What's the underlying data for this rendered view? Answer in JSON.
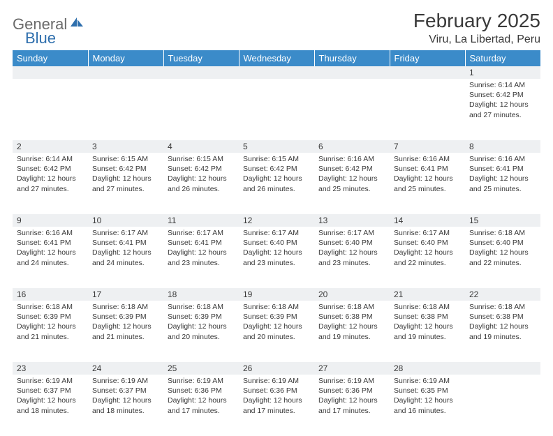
{
  "logo": {
    "part1": "General",
    "part2": "Blue"
  },
  "title": "February 2025",
  "location": "Viru, La Libertad, Peru",
  "colors": {
    "header_bg": "#3b8bc9",
    "header_text": "#ffffff",
    "daynum_bg": "#eef0f2",
    "text": "#3a3a3a",
    "logo_gray": "#6b6b6b",
    "logo_blue": "#2f6fad"
  },
  "day_headers": [
    "Sunday",
    "Monday",
    "Tuesday",
    "Wednesday",
    "Thursday",
    "Friday",
    "Saturday"
  ],
  "weeks": [
    [
      null,
      null,
      null,
      null,
      null,
      null,
      {
        "n": "1",
        "sr": "Sunrise: 6:14 AM",
        "ss": "Sunset: 6:42 PM",
        "dl1": "Daylight: 12 hours",
        "dl2": "and 27 minutes."
      }
    ],
    [
      {
        "n": "2",
        "sr": "Sunrise: 6:14 AM",
        "ss": "Sunset: 6:42 PM",
        "dl1": "Daylight: 12 hours",
        "dl2": "and 27 minutes."
      },
      {
        "n": "3",
        "sr": "Sunrise: 6:15 AM",
        "ss": "Sunset: 6:42 PM",
        "dl1": "Daylight: 12 hours",
        "dl2": "and 27 minutes."
      },
      {
        "n": "4",
        "sr": "Sunrise: 6:15 AM",
        "ss": "Sunset: 6:42 PM",
        "dl1": "Daylight: 12 hours",
        "dl2": "and 26 minutes."
      },
      {
        "n": "5",
        "sr": "Sunrise: 6:15 AM",
        "ss": "Sunset: 6:42 PM",
        "dl1": "Daylight: 12 hours",
        "dl2": "and 26 minutes."
      },
      {
        "n": "6",
        "sr": "Sunrise: 6:16 AM",
        "ss": "Sunset: 6:42 PM",
        "dl1": "Daylight: 12 hours",
        "dl2": "and 25 minutes."
      },
      {
        "n": "7",
        "sr": "Sunrise: 6:16 AM",
        "ss": "Sunset: 6:41 PM",
        "dl1": "Daylight: 12 hours",
        "dl2": "and 25 minutes."
      },
      {
        "n": "8",
        "sr": "Sunrise: 6:16 AM",
        "ss": "Sunset: 6:41 PM",
        "dl1": "Daylight: 12 hours",
        "dl2": "and 25 minutes."
      }
    ],
    [
      {
        "n": "9",
        "sr": "Sunrise: 6:16 AM",
        "ss": "Sunset: 6:41 PM",
        "dl1": "Daylight: 12 hours",
        "dl2": "and 24 minutes."
      },
      {
        "n": "10",
        "sr": "Sunrise: 6:17 AM",
        "ss": "Sunset: 6:41 PM",
        "dl1": "Daylight: 12 hours",
        "dl2": "and 24 minutes."
      },
      {
        "n": "11",
        "sr": "Sunrise: 6:17 AM",
        "ss": "Sunset: 6:41 PM",
        "dl1": "Daylight: 12 hours",
        "dl2": "and 23 minutes."
      },
      {
        "n": "12",
        "sr": "Sunrise: 6:17 AM",
        "ss": "Sunset: 6:40 PM",
        "dl1": "Daylight: 12 hours",
        "dl2": "and 23 minutes."
      },
      {
        "n": "13",
        "sr": "Sunrise: 6:17 AM",
        "ss": "Sunset: 6:40 PM",
        "dl1": "Daylight: 12 hours",
        "dl2": "and 23 minutes."
      },
      {
        "n": "14",
        "sr": "Sunrise: 6:17 AM",
        "ss": "Sunset: 6:40 PM",
        "dl1": "Daylight: 12 hours",
        "dl2": "and 22 minutes."
      },
      {
        "n": "15",
        "sr": "Sunrise: 6:18 AM",
        "ss": "Sunset: 6:40 PM",
        "dl1": "Daylight: 12 hours",
        "dl2": "and 22 minutes."
      }
    ],
    [
      {
        "n": "16",
        "sr": "Sunrise: 6:18 AM",
        "ss": "Sunset: 6:39 PM",
        "dl1": "Daylight: 12 hours",
        "dl2": "and 21 minutes."
      },
      {
        "n": "17",
        "sr": "Sunrise: 6:18 AM",
        "ss": "Sunset: 6:39 PM",
        "dl1": "Daylight: 12 hours",
        "dl2": "and 21 minutes."
      },
      {
        "n": "18",
        "sr": "Sunrise: 6:18 AM",
        "ss": "Sunset: 6:39 PM",
        "dl1": "Daylight: 12 hours",
        "dl2": "and 20 minutes."
      },
      {
        "n": "19",
        "sr": "Sunrise: 6:18 AM",
        "ss": "Sunset: 6:39 PM",
        "dl1": "Daylight: 12 hours",
        "dl2": "and 20 minutes."
      },
      {
        "n": "20",
        "sr": "Sunrise: 6:18 AM",
        "ss": "Sunset: 6:38 PM",
        "dl1": "Daylight: 12 hours",
        "dl2": "and 19 minutes."
      },
      {
        "n": "21",
        "sr": "Sunrise: 6:18 AM",
        "ss": "Sunset: 6:38 PM",
        "dl1": "Daylight: 12 hours",
        "dl2": "and 19 minutes."
      },
      {
        "n": "22",
        "sr": "Sunrise: 6:18 AM",
        "ss": "Sunset: 6:38 PM",
        "dl1": "Daylight: 12 hours",
        "dl2": "and 19 minutes."
      }
    ],
    [
      {
        "n": "23",
        "sr": "Sunrise: 6:19 AM",
        "ss": "Sunset: 6:37 PM",
        "dl1": "Daylight: 12 hours",
        "dl2": "and 18 minutes."
      },
      {
        "n": "24",
        "sr": "Sunrise: 6:19 AM",
        "ss": "Sunset: 6:37 PM",
        "dl1": "Daylight: 12 hours",
        "dl2": "and 18 minutes."
      },
      {
        "n": "25",
        "sr": "Sunrise: 6:19 AM",
        "ss": "Sunset: 6:36 PM",
        "dl1": "Daylight: 12 hours",
        "dl2": "and 17 minutes."
      },
      {
        "n": "26",
        "sr": "Sunrise: 6:19 AM",
        "ss": "Sunset: 6:36 PM",
        "dl1": "Daylight: 12 hours",
        "dl2": "and 17 minutes."
      },
      {
        "n": "27",
        "sr": "Sunrise: 6:19 AM",
        "ss": "Sunset: 6:36 PM",
        "dl1": "Daylight: 12 hours",
        "dl2": "and 17 minutes."
      },
      {
        "n": "28",
        "sr": "Sunrise: 6:19 AM",
        "ss": "Sunset: 6:35 PM",
        "dl1": "Daylight: 12 hours",
        "dl2": "and 16 minutes."
      },
      null
    ]
  ]
}
